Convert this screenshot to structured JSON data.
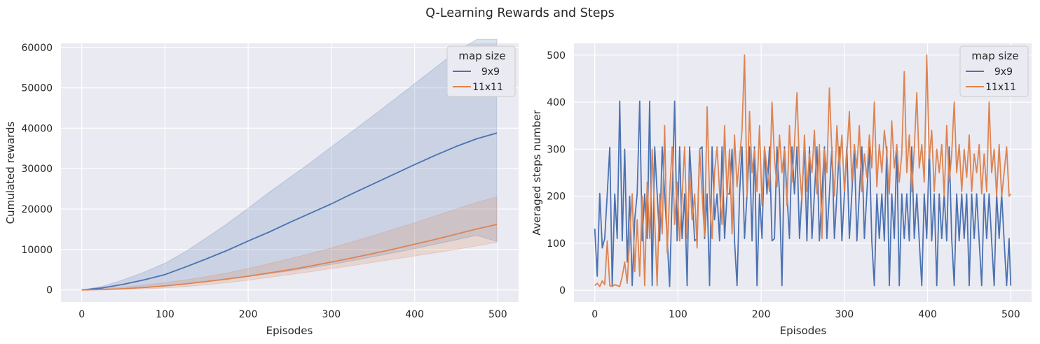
{
  "figure": {
    "title": "Q-Learning Rewards and Steps"
  },
  "colors": {
    "series_9x9": "#4c72b0",
    "series_11x11": "#dd8452",
    "background": "#eaeaf2",
    "grid": "#ffffff"
  },
  "chart_data": [
    {
      "type": "area",
      "title": "",
      "xlabel": "Episodes",
      "ylabel": "Cumulated rewards",
      "xlim": [
        -25,
        525
      ],
      "ylim": [
        -3000,
        61000
      ],
      "xticks": [
        0,
        100,
        200,
        300,
        400,
        500
      ],
      "yticks": [
        0,
        10000,
        20000,
        30000,
        40000,
        50000,
        60000
      ],
      "grid": true,
      "legend": {
        "title": "map size",
        "placement": "top-right"
      },
      "series": [
        {
          "name": "9x9",
          "x": [
            0,
            25,
            50,
            75,
            100,
            125,
            150,
            175,
            200,
            225,
            250,
            275,
            300,
            325,
            350,
            375,
            400,
            425,
            450,
            475,
            499
          ],
          "y": [
            0,
            500,
            1400,
            2500,
            3800,
            5700,
            7700,
            9800,
            12100,
            14300,
            16700,
            19000,
            21300,
            23800,
            26200,
            28600,
            31000,
            33300,
            35500,
            37400,
            38800
          ],
          "lower": [
            0,
            100,
            300,
            600,
            1000,
            1500,
            2000,
            2600,
            3300,
            4000,
            4700,
            5500,
            6300,
            7200,
            8200,
            9200,
            10200,
            11300,
            12400,
            13500,
            12000
          ],
          "upper": [
            0,
            900,
            2500,
            4400,
            6600,
            9500,
            12900,
            16400,
            20200,
            24100,
            27800,
            31500,
            35400,
            39200,
            43100,
            47000,
            51000,
            55000,
            59000,
            62000,
            62000
          ]
        },
        {
          "name": "11x11",
          "x": [
            0,
            25,
            50,
            75,
            100,
            125,
            150,
            175,
            200,
            225,
            250,
            275,
            300,
            325,
            350,
            375,
            400,
            425,
            450,
            475,
            499
          ],
          "y": [
            0,
            100,
            300,
            600,
            1000,
            1500,
            2100,
            2700,
            3400,
            4200,
            5000,
            5900,
            6900,
            7900,
            9000,
            10100,
            11300,
            12500,
            13800,
            15100,
            16200
          ],
          "lower": [
            0,
            0,
            100,
            200,
            500,
            800,
            1300,
            1800,
            2400,
            3100,
            3800,
            4500,
            5300,
            6000,
            6800,
            7600,
            8400,
            9200,
            10000,
            10900,
            11800
          ],
          "upper": [
            0,
            300,
            700,
            1200,
            1800,
            2500,
            3300,
            4200,
            5300,
            6500,
            7700,
            9000,
            10400,
            11900,
            13400,
            15000,
            16600,
            18300,
            20000,
            21700,
            23000
          ]
        }
      ]
    },
    {
      "type": "line",
      "title": "",
      "xlabel": "Episodes",
      "ylabel": "Averaged steps number",
      "xlim": [
        -25,
        525
      ],
      "ylim": [
        -25,
        525
      ],
      "xticks": [
        0,
        100,
        200,
        300,
        400,
        500
      ],
      "yticks": [
        0,
        100,
        200,
        300,
        400,
        500
      ],
      "grid": true,
      "legend": {
        "title": "map size",
        "placement": "top-right"
      },
      "series": [
        {
          "name": "9x9",
          "x": [
            0,
            3,
            6,
            9,
            12,
            15,
            18,
            21,
            24,
            27,
            30,
            33,
            36,
            39,
            42,
            45,
            48,
            51,
            54,
            57,
            60,
            63,
            66,
            69,
            72,
            75,
            78,
            81,
            84,
            87,
            90,
            93,
            96,
            99,
            102,
            105,
            108,
            111,
            114,
            117,
            120,
            123,
            126,
            129,
            132,
            135,
            138,
            141,
            144,
            147,
            150,
            153,
            156,
            159,
            162,
            165,
            168,
            171,
            174,
            177,
            180,
            183,
            186,
            189,
            192,
            195,
            198,
            201,
            204,
            207,
            210,
            213,
            216,
            219,
            222,
            225,
            228,
            231,
            234,
            237,
            240,
            243,
            246,
            249,
            252,
            255,
            258,
            261,
            264,
            267,
            270,
            273,
            276,
            279,
            282,
            285,
            288,
            291,
            294,
            297,
            300,
            303,
            306,
            309,
            312,
            315,
            318,
            321,
            324,
            327,
            330,
            333,
            336,
            339,
            342,
            345,
            348,
            351,
            354,
            357,
            360,
            363,
            366,
            369,
            372,
            375,
            378,
            381,
            384,
            387,
            390,
            393,
            396,
            399,
            402,
            405,
            408,
            411,
            414,
            417,
            420,
            423,
            426,
            429,
            432,
            435,
            438,
            441,
            444,
            447,
            450,
            453,
            456,
            459,
            462,
            465,
            468,
            471,
            474,
            477,
            480,
            483,
            486,
            489,
            492,
            495,
            498,
            500
          ],
          "y": [
            131,
            30,
            206,
            90,
            110,
            205,
            304,
            10,
            205,
            110,
            402,
            105,
            300,
            60,
            200,
            10,
            150,
            205,
            402,
            105,
            205,
            110,
            402,
            10,
            305,
            205,
            105,
            305,
            205,
            110,
            8,
            205,
            402,
            105,
            305,
            110,
            205,
            10,
            305,
            205,
            105,
            110,
            300,
            305,
            110,
            205,
            10,
            305,
            150,
            205,
            105,
            305,
            110,
            205,
            205,
            300,
            105,
            10,
            205,
            305,
            110,
            205,
            305,
            105,
            305,
            10,
            205,
            110,
            305,
            205,
            305,
            105,
            110,
            305,
            205,
            10,
            305,
            205,
            110,
            305,
            205,
            305,
            110,
            205,
            305,
            105,
            305,
            110,
            205,
            305,
            105,
            205,
            305,
            110,
            205,
            305,
            110,
            205,
            305,
            105,
            205,
            305,
            110,
            205,
            305,
            105,
            205,
            305,
            110,
            205,
            305,
            105,
            10,
            205,
            110,
            205,
            105,
            305,
            10,
            205,
            110,
            305,
            10,
            205,
            110,
            205,
            105,
            305,
            110,
            205,
            105,
            10,
            205,
            110,
            305,
            105,
            205,
            10,
            205,
            110,
            205,
            105,
            305,
            110,
            10,
            205,
            105,
            205,
            110,
            205,
            10,
            205,
            110,
            205,
            105,
            10,
            205,
            110,
            205,
            105,
            10,
            205,
            110,
            205,
            105,
            10,
            110,
            10
          ]
        },
        {
          "name": "11x11",
          "x": [
            0,
            3,
            6,
            9,
            12,
            15,
            18,
            21,
            24,
            27,
            30,
            33,
            36,
            39,
            42,
            45,
            48,
            51,
            54,
            57,
            60,
            63,
            66,
            69,
            72,
            75,
            78,
            81,
            84,
            87,
            90,
            93,
            96,
            99,
            102,
            105,
            108,
            111,
            114,
            117,
            120,
            123,
            126,
            129,
            132,
            135,
            138,
            141,
            144,
            147,
            150,
            153,
            156,
            159,
            162,
            165,
            168,
            171,
            174,
            177,
            180,
            183,
            186,
            189,
            192,
            195,
            198,
            201,
            204,
            207,
            210,
            213,
            216,
            219,
            222,
            225,
            228,
            231,
            234,
            237,
            240,
            243,
            246,
            249,
            252,
            255,
            258,
            261,
            264,
            267,
            270,
            273,
            276,
            279,
            282,
            285,
            288,
            291,
            294,
            297,
            300,
            303,
            306,
            309,
            312,
            315,
            318,
            321,
            324,
            327,
            330,
            333,
            336,
            339,
            342,
            345,
            348,
            351,
            354,
            357,
            360,
            363,
            366,
            369,
            372,
            375,
            378,
            381,
            384,
            387,
            390,
            393,
            396,
            399,
            402,
            405,
            408,
            411,
            414,
            417,
            420,
            423,
            426,
            429,
            432,
            435,
            438,
            441,
            444,
            447,
            450,
            453,
            456,
            459,
            462,
            465,
            468,
            471,
            474,
            477,
            480,
            483,
            486,
            489,
            492,
            495,
            498,
            500
          ],
          "y": [
            10,
            15,
            8,
            20,
            12,
            105,
            10,
            8,
            12,
            10,
            8,
            30,
            60,
            15,
            110,
            205,
            40,
            150,
            30,
            200,
            10,
            230,
            110,
            300,
            150,
            10,
            205,
            120,
            350,
            80,
            205,
            305,
            140,
            230,
            105,
            200,
            305,
            110,
            250,
            150,
            205,
            90,
            300,
            205,
            115,
            390,
            200,
            110,
            250,
            305,
            210,
            140,
            350,
            200,
            300,
            120,
            330,
            220,
            280,
            340,
            500,
            200,
            380,
            250,
            300,
            210,
            350,
            180,
            305,
            260,
            210,
            400,
            280,
            220,
            330,
            250,
            300,
            180,
            350,
            230,
            310,
            420,
            260,
            190,
            330,
            210,
            290,
            250,
            340,
            205,
            310,
            110,
            300,
            250,
            430,
            290,
            200,
            350,
            260,
            330,
            210,
            290,
            380,
            230,
            310,
            260,
            350,
            210,
            290,
            240,
            330,
            260,
            400,
            220,
            310,
            250,
            340,
            290,
            205,
            360,
            260,
            310,
            230,
            290,
            465,
            250,
            330,
            210,
            300,
            420,
            260,
            310,
            230,
            500,
            280,
            340,
            210,
            300,
            250,
            310,
            200,
            350,
            230,
            290,
            400,
            250,
            310,
            210,
            300,
            240,
            330,
            210,
            290,
            250,
            310,
            205,
            290,
            210,
            400,
            250,
            300,
            200,
            310,
            200,
            250,
            305,
            200,
            205
          ]
        }
      ]
    }
  ]
}
